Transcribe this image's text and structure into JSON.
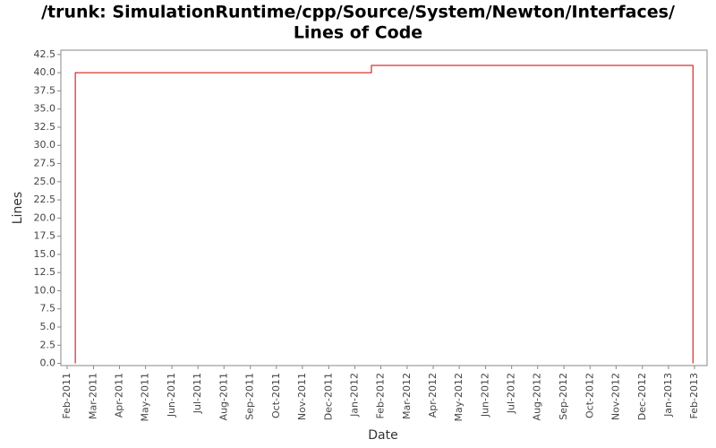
{
  "chart_data": {
    "type": "line",
    "title": [
      "/trunk: SimulationRuntime/cpp/Source/System/Newton/Interfaces/",
      "Lines of Code"
    ],
    "x_label": "Date",
    "y_label": "Lines",
    "x": [
      2011.109,
      2011.109,
      2012.053,
      2012.053,
      2013.078,
      2013.078
    ],
    "series": [
      {
        "name": "Lines",
        "color": "#cc0000",
        "values": [
          0,
          40,
          40,
          41,
          41,
          0
        ]
      }
    ],
    "xlim": [
      2011.063,
      2013.123
    ],
    "xticks": [
      {
        "value": 2011.083,
        "label": "Feb-2011"
      },
      {
        "value": 2011.167,
        "label": "Mar-2011"
      },
      {
        "value": 2011.25,
        "label": "Apr-2011"
      },
      {
        "value": 2011.333,
        "label": "May-2011"
      },
      {
        "value": 2011.417,
        "label": "Jun-2011"
      },
      {
        "value": 2011.5,
        "label": "Jul-2011"
      },
      {
        "value": 2011.583,
        "label": "Aug-2011"
      },
      {
        "value": 2011.667,
        "label": "Sep-2011"
      },
      {
        "value": 2011.75,
        "label": "Oct-2011"
      },
      {
        "value": 2011.833,
        "label": "Nov-2011"
      },
      {
        "value": 2011.917,
        "label": "Dec-2011"
      },
      {
        "value": 2012.0,
        "label": "Jan-2012"
      },
      {
        "value": 2012.083,
        "label": "Feb-2012"
      },
      {
        "value": 2012.167,
        "label": "Mar-2012"
      },
      {
        "value": 2012.25,
        "label": "Apr-2012"
      },
      {
        "value": 2012.333,
        "label": "May-2012"
      },
      {
        "value": 2012.417,
        "label": "Jun-2012"
      },
      {
        "value": 2012.5,
        "label": "Jul-2012"
      },
      {
        "value": 2012.583,
        "label": "Aug-2012"
      },
      {
        "value": 2012.667,
        "label": "Sep-2012"
      },
      {
        "value": 2012.75,
        "label": "Oct-2012"
      },
      {
        "value": 2012.833,
        "label": "Nov-2012"
      },
      {
        "value": 2012.917,
        "label": "Dec-2012"
      },
      {
        "value": 2013.0,
        "label": "Jan-2013"
      },
      {
        "value": 2013.083,
        "label": "Feb-2013"
      }
    ],
    "ylim": [
      -0.3,
      43.1
    ],
    "yticks": [
      {
        "value": 0,
        "label": "0.0"
      },
      2.5,
      {
        "value": 5,
        "label": "5.0"
      },
      7.5,
      {
        "value": 10,
        "label": "10.0"
      },
      12.5,
      {
        "value": 15,
        "label": "15.0"
      },
      17.5,
      {
        "value": 20,
        "label": "20.0"
      },
      22.5,
      {
        "value": 25,
        "label": "25.0"
      },
      27.5,
      {
        "value": 30,
        "label": "30.0"
      },
      32.5,
      {
        "value": 35,
        "label": "35.0"
      },
      37.5,
      {
        "value": 40,
        "label": "40.0"
      },
      42.5
    ],
    "grid": false
  }
}
